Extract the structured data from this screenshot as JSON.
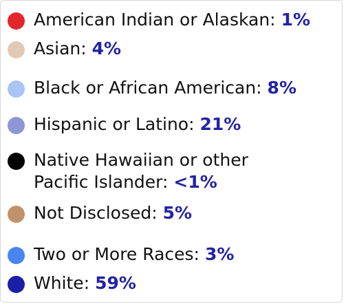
{
  "legend": {
    "items": [
      {
        "label": "American Indian or Alaskan:",
        "value": "1%",
        "color": "#e3262c"
      },
      {
        "label": "Asian:",
        "value": "4%",
        "color": "#e2c9b5"
      },
      {
        "label": "Black or African American:",
        "value": "8%",
        "color": "#a9c4f5"
      },
      {
        "label": "Hispanic or Latino:",
        "value": "21%",
        "color": "#8f96d6"
      },
      {
        "label": "Native Hawaiian or other Pacific Islander:",
        "value": "<1%",
        "color": "#000000"
      },
      {
        "label": "Not Disclosed:",
        "value": "5%",
        "color": "#c0916b"
      },
      {
        "label": "Two or More Races:",
        "value": "3%",
        "color": "#4a84f0"
      },
      {
        "label": "White:",
        "value": "59%",
        "color": "#1a1fa8"
      }
    ]
  }
}
